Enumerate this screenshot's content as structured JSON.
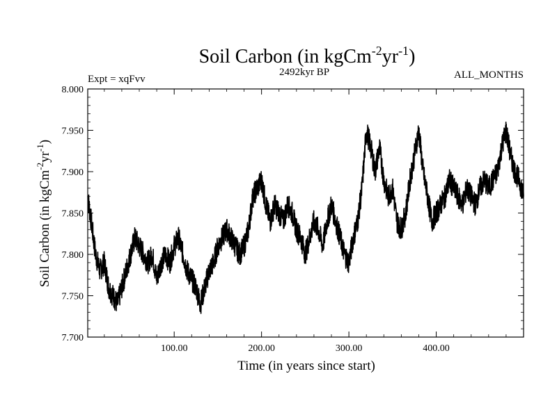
{
  "chart_data": {
    "type": "line",
    "title_main": "Soil Carbon (in kgCm",
    "title_sup1": "-2",
    "title_mid": "yr",
    "title_sup2": "-1",
    "title_end": ")",
    "subtitle": "2492kyr BP",
    "left_label": "Expt = xqFvv",
    "right_label": "ALL_MONTHS",
    "xlabel": "Time (in years since start)",
    "ylabel_main": "Soil Carbon (in kgCm",
    "ylabel_sup1": "-2",
    "ylabel_mid": "yr",
    "ylabel_sup2": "-1",
    "ylabel_end": ")",
    "xlim": [
      1,
      500
    ],
    "ylim": [
      7.7,
      8.0
    ],
    "xticks": [
      100,
      200,
      300,
      400
    ],
    "xtick_labels": [
      "100.00",
      "200.00",
      "300.00",
      "400.00"
    ],
    "yticks": [
      7.7,
      7.75,
      7.8,
      7.85,
      7.9,
      7.95,
      8.0
    ],
    "ytick_labels": [
      "7.700",
      "7.750",
      "7.800",
      "7.850",
      "7.900",
      "7.950",
      "8.000"
    ],
    "series": [
      {
        "name": "Soil Carbon",
        "x": [
          1,
          5,
          10,
          15,
          20,
          25,
          30,
          35,
          40,
          45,
          50,
          55,
          60,
          65,
          70,
          75,
          80,
          85,
          90,
          95,
          100,
          105,
          110,
          115,
          120,
          125,
          130,
          135,
          140,
          145,
          150,
          155,
          160,
          165,
          170,
          175,
          180,
          185,
          190,
          195,
          200,
          205,
          210,
          215,
          220,
          225,
          230,
          235,
          240,
          245,
          250,
          255,
          260,
          265,
          270,
          275,
          280,
          285,
          290,
          295,
          300,
          305,
          310,
          315,
          320,
          325,
          330,
          335,
          340,
          345,
          350,
          355,
          360,
          365,
          370,
          375,
          380,
          385,
          390,
          395,
          400,
          405,
          410,
          415,
          420,
          425,
          430,
          435,
          440,
          445,
          450,
          455,
          460,
          465,
          470,
          475,
          480,
          485,
          490,
          495,
          500
        ],
        "values": [
          7.87,
          7.84,
          7.8,
          7.78,
          7.79,
          7.76,
          7.75,
          7.74,
          7.76,
          7.78,
          7.8,
          7.82,
          7.81,
          7.8,
          7.79,
          7.8,
          7.77,
          7.79,
          7.8,
          7.79,
          7.81,
          7.82,
          7.8,
          7.78,
          7.77,
          7.76,
          7.74,
          7.76,
          7.78,
          7.79,
          7.81,
          7.82,
          7.83,
          7.82,
          7.81,
          7.8,
          7.81,
          7.83,
          7.87,
          7.88,
          7.89,
          7.86,
          7.84,
          7.86,
          7.85,
          7.84,
          7.86,
          7.85,
          7.83,
          7.82,
          7.8,
          7.82,
          7.84,
          7.83,
          7.81,
          7.84,
          7.86,
          7.84,
          7.82,
          7.8,
          7.79,
          7.82,
          7.84,
          7.88,
          7.95,
          7.93,
          7.9,
          7.93,
          7.89,
          7.87,
          7.88,
          7.84,
          7.83,
          7.85,
          7.89,
          7.92,
          7.95,
          7.9,
          7.87,
          7.84,
          7.85,
          7.86,
          7.87,
          7.89,
          7.88,
          7.87,
          7.86,
          7.88,
          7.87,
          7.86,
          7.88,
          7.89,
          7.88,
          7.89,
          7.9,
          7.93,
          7.95,
          7.92,
          7.9,
          7.89,
          7.87
        ]
      }
    ]
  }
}
